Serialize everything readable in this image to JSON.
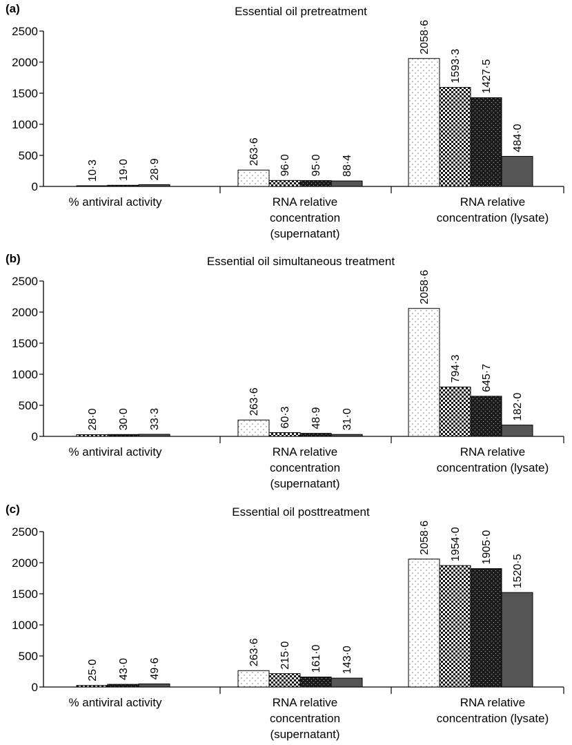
{
  "chart_data": [
    {
      "type": "bar",
      "panel_label": "(a)",
      "title": "Essential oil pretreatment",
      "ylim": [
        0,
        2500
      ],
      "yticks": [
        "0",
        "500",
        "1000",
        "1500",
        "2000",
        "2500"
      ],
      "categories": [
        [
          "% antiviral activity"
        ],
        [
          "RNA relative",
          "concentration",
          "(supernatant)"
        ],
        [
          "RNA relative",
          "concentration (lysate)"
        ]
      ],
      "series": [
        {
          "values": [
            null,
            263.6,
            2058.6
          ],
          "labels": [
            "",
            "263·6",
            "2058·6"
          ],
          "pattern": "dots"
        },
        {
          "values": [
            10.3,
            96.0,
            1593.3
          ],
          "labels": [
            "10·3",
            "96·0",
            "1593·3"
          ],
          "pattern": "checker"
        },
        {
          "values": [
            19.0,
            95.0,
            1427.5
          ],
          "labels": [
            "19·0",
            "95·0",
            "1427·5"
          ],
          "pattern": "dark-dots"
        },
        {
          "values": [
            28.9,
            88.4,
            484.0
          ],
          "labels": [
            "28·9",
            "88·4",
            "484·0"
          ],
          "pattern": "solid-gray"
        }
      ]
    },
    {
      "type": "bar",
      "panel_label": "(b)",
      "title": "Essential oil simultaneous treatment",
      "ylim": [
        0,
        2500
      ],
      "yticks": [
        "0",
        "500",
        "1000",
        "1500",
        "2000",
        "2500"
      ],
      "categories": [
        [
          "% antiviral activity"
        ],
        [
          "RNA relative",
          "concentration",
          "(supernatant)"
        ],
        [
          "RNA relative",
          "concentration (lysate)"
        ]
      ],
      "series": [
        {
          "values": [
            null,
            263.6,
            2058.6
          ],
          "labels": [
            "",
            "263·6",
            "2058·6"
          ],
          "pattern": "dots"
        },
        {
          "values": [
            28.0,
            60.3,
            794.3
          ],
          "labels": [
            "28·0",
            "60·3",
            "794·3"
          ],
          "pattern": "checker"
        },
        {
          "values": [
            30.0,
            48.9,
            645.7
          ],
          "labels": [
            "30·0",
            "48·9",
            "645·7"
          ],
          "pattern": "dark-dots"
        },
        {
          "values": [
            33.3,
            31.0,
            182.0
          ],
          "labels": [
            "33·3",
            "31·0",
            "182·0"
          ],
          "pattern": "solid-gray"
        }
      ]
    },
    {
      "type": "bar",
      "panel_label": "(c)",
      "title": "Essential oil posttreatment",
      "ylim": [
        0,
        2500
      ],
      "yticks": [
        "0",
        "500",
        "1000",
        "1500",
        "2000",
        "2500"
      ],
      "categories": [
        [
          "% antiviral activity"
        ],
        [
          "RNA relative",
          "concentration",
          "(supernatant)"
        ],
        [
          "RNA relative",
          "concentration (lysate)"
        ]
      ],
      "series": [
        {
          "values": [
            null,
            263.6,
            2058.6
          ],
          "labels": [
            "",
            "263·6",
            "2058·6"
          ],
          "pattern": "dots"
        },
        {
          "values": [
            25.0,
            215.0,
            1954.0
          ],
          "labels": [
            "25·0",
            "215·0",
            "1954·0"
          ],
          "pattern": "checker"
        },
        {
          "values": [
            43.0,
            161.0,
            1905.0
          ],
          "labels": [
            "43·0",
            "161·0",
            "1905·0"
          ],
          "pattern": "dark-dots"
        },
        {
          "values": [
            49.6,
            143.0,
            1520.5
          ],
          "labels": [
            "49·6",
            "143·0",
            "1520·5"
          ],
          "pattern": "solid-gray"
        }
      ]
    }
  ]
}
